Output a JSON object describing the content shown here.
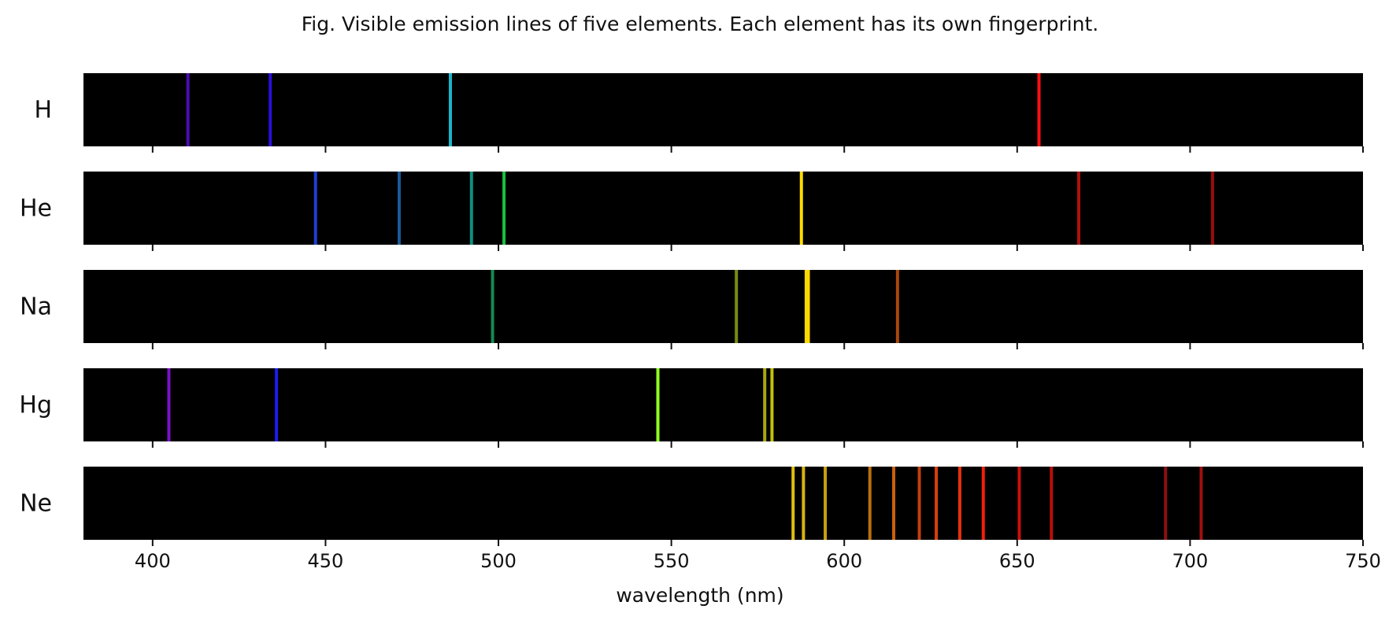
{
  "chart_data": {
    "type": "spectral-lines",
    "title": "Fig. Visible emission lines of five elements. Each element has its own fingerprint.",
    "xlabel": "wavelength (nm)",
    "xlim": [
      380,
      750
    ],
    "xticks": [
      400,
      450,
      500,
      550,
      600,
      650,
      700,
      750
    ],
    "background": "#000000",
    "elements": [
      {
        "name": "H",
        "lines": [
          {
            "nm": 410.2,
            "color": "#4b0db0"
          },
          {
            "nm": 434.0,
            "color": "#2a0ed8"
          },
          {
            "nm": 486.1,
            "color": "#19b6cc"
          },
          {
            "nm": 656.3,
            "color": "#ff1010"
          }
        ]
      },
      {
        "name": "He",
        "lines": [
          {
            "nm": 447.1,
            "color": "#1f3fd0"
          },
          {
            "nm": 471.3,
            "color": "#1a5a9a"
          },
          {
            "nm": 492.2,
            "color": "#0e8f7f"
          },
          {
            "nm": 501.6,
            "color": "#18c040"
          },
          {
            "nm": 587.6,
            "color": "#ffdc00"
          },
          {
            "nm": 667.8,
            "color": "#b01010"
          },
          {
            "nm": 706.5,
            "color": "#9a0c0c"
          }
        ]
      },
      {
        "name": "Na",
        "lines": [
          {
            "nm": 498.3,
            "color": "#138a50"
          },
          {
            "nm": 568.8,
            "color": "#7a8a10"
          },
          {
            "nm": 589.0,
            "color": "#ffd800"
          },
          {
            "nm": 589.6,
            "color": "#ffd800"
          },
          {
            "nm": 615.4,
            "color": "#a8480a"
          }
        ]
      },
      {
        "name": "Hg",
        "lines": [
          {
            "nm": 404.7,
            "color": "#7a12c8"
          },
          {
            "nm": 435.8,
            "color": "#1c1cf0"
          },
          {
            "nm": 546.1,
            "color": "#90ff20"
          },
          {
            "nm": 577.0,
            "color": "#a8a810"
          },
          {
            "nm": 579.1,
            "color": "#c0c010"
          }
        ]
      },
      {
        "name": "Ne",
        "lines": [
          {
            "nm": 585.2,
            "color": "#e0c010"
          },
          {
            "nm": 588.2,
            "color": "#d8b410"
          },
          {
            "nm": 594.5,
            "color": "#c8a010"
          },
          {
            "nm": 607.4,
            "color": "#b8700c"
          },
          {
            "nm": 614.3,
            "color": "#c8600c"
          },
          {
            "nm": 621.7,
            "color": "#c0400c"
          },
          {
            "nm": 626.6,
            "color": "#d83e0c"
          },
          {
            "nm": 633.4,
            "color": "#e8300c"
          },
          {
            "nm": 640.2,
            "color": "#f0200c"
          },
          {
            "nm": 650.6,
            "color": "#c8100c"
          },
          {
            "nm": 659.9,
            "color": "#b8100c"
          },
          {
            "nm": 692.9,
            "color": "#8c1010"
          },
          {
            "nm": 703.2,
            "color": "#a01010"
          }
        ]
      }
    ]
  }
}
